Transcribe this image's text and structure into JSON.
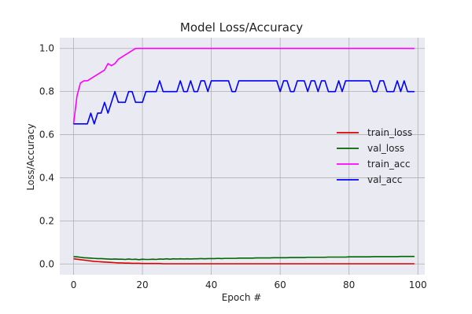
{
  "chart_data": {
    "type": "line",
    "title": "Model Loss/Accuracy",
    "xlabel": "Epoch #",
    "ylabel": "Loss/Accuracy",
    "xlim": [
      -4,
      102
    ],
    "ylim": [
      -0.05,
      1.05
    ],
    "xticks": [
      0,
      20,
      40,
      60,
      80,
      100
    ],
    "yticks": [
      0.0,
      0.2,
      0.4,
      0.6,
      0.8,
      1.0
    ],
    "xtick_labels": [
      "0",
      "20",
      "40",
      "60",
      "80",
      "100"
    ],
    "ytick_labels": [
      "0.0",
      "0.2",
      "0.4",
      "0.6",
      "0.8",
      "1.0"
    ],
    "grid": true,
    "legend_position": "center-right",
    "background": "#eaeaf2",
    "series": [
      {
        "name": "train_loss",
        "color": "#dd0000",
        "values": [
          0.024,
          0.022,
          0.02,
          0.018,
          0.016,
          0.014,
          0.012,
          0.011,
          0.01,
          0.009,
          0.008,
          0.007,
          0.006,
          0.005,
          0.005,
          0.004,
          0.004,
          0.003,
          0.003,
          0.003,
          0.002,
          0.002,
          0.002,
          0.002,
          0.002,
          0.002,
          0.001,
          0.001,
          0.001,
          0.001,
          0.001,
          0.001,
          0.001,
          0.001,
          0.001,
          0.001,
          0.001,
          0.001,
          0.001,
          0.001,
          0.001,
          0.001,
          0.001,
          0.001,
          0.001,
          0.001,
          0.001,
          0.001,
          0.001,
          0.001,
          0.001,
          0.001,
          0.001,
          0.001,
          0.001,
          0.001,
          0.001,
          0.001,
          0.001,
          0.001,
          0.001,
          0.001,
          0.001,
          0.001,
          0.001,
          0.001,
          0.001,
          0.001,
          0.001,
          0.001,
          0.001,
          0.001,
          0.001,
          0.001,
          0.001,
          0.001,
          0.001,
          0.001,
          0.001,
          0.001,
          0.001,
          0.001,
          0.001,
          0.001,
          0.001,
          0.001,
          0.001,
          0.001,
          0.001,
          0.001,
          0.001,
          0.001,
          0.001,
          0.001,
          0.001,
          0.001,
          0.001,
          0.001,
          0.001,
          0.001
        ]
      },
      {
        "name": "val_loss",
        "color": "#006400",
        "values": [
          0.034,
          0.033,
          0.031,
          0.029,
          0.028,
          0.027,
          0.026,
          0.025,
          0.025,
          0.024,
          0.023,
          0.022,
          0.023,
          0.022,
          0.022,
          0.021,
          0.023,
          0.021,
          0.022,
          0.02,
          0.022,
          0.021,
          0.021,
          0.022,
          0.021,
          0.023,
          0.022,
          0.024,
          0.022,
          0.024,
          0.023,
          0.024,
          0.023,
          0.024,
          0.023,
          0.024,
          0.024,
          0.025,
          0.024,
          0.025,
          0.025,
          0.025,
          0.026,
          0.025,
          0.026,
          0.026,
          0.026,
          0.026,
          0.027,
          0.027,
          0.027,
          0.027,
          0.027,
          0.028,
          0.028,
          0.028,
          0.028,
          0.028,
          0.029,
          0.029,
          0.029,
          0.029,
          0.029,
          0.03,
          0.03,
          0.03,
          0.03,
          0.03,
          0.031,
          0.031,
          0.031,
          0.031,
          0.031,
          0.031,
          0.032,
          0.032,
          0.032,
          0.032,
          0.032,
          0.032,
          0.033,
          0.033,
          0.033,
          0.033,
          0.033,
          0.033,
          0.033,
          0.034,
          0.034,
          0.034,
          0.034,
          0.034,
          0.034,
          0.034,
          0.034,
          0.035,
          0.035,
          0.035,
          0.035,
          0.035
        ]
      },
      {
        "name": "train_acc",
        "color": "#ff00ff",
        "values": [
          0.65,
          0.78,
          0.84,
          0.85,
          0.85,
          0.86,
          0.87,
          0.88,
          0.89,
          0.9,
          0.93,
          0.92,
          0.93,
          0.95,
          0.96,
          0.97,
          0.98,
          0.99,
          1.0,
          1.0,
          1.0,
          1.0,
          1.0,
          1.0,
          1.0,
          1.0,
          1.0,
          1.0,
          1.0,
          1.0,
          1.0,
          1.0,
          1.0,
          1.0,
          1.0,
          1.0,
          1.0,
          1.0,
          1.0,
          1.0,
          1.0,
          1.0,
          1.0,
          1.0,
          1.0,
          1.0,
          1.0,
          1.0,
          1.0,
          1.0,
          1.0,
          1.0,
          1.0,
          1.0,
          1.0,
          1.0,
          1.0,
          1.0,
          1.0,
          1.0,
          1.0,
          1.0,
          1.0,
          1.0,
          1.0,
          1.0,
          1.0,
          1.0,
          1.0,
          1.0,
          1.0,
          1.0,
          1.0,
          1.0,
          1.0,
          1.0,
          1.0,
          1.0,
          1.0,
          1.0,
          1.0,
          1.0,
          1.0,
          1.0,
          1.0,
          1.0,
          1.0,
          1.0,
          1.0,
          1.0,
          1.0,
          1.0,
          1.0,
          1.0,
          1.0,
          1.0,
          1.0,
          1.0,
          1.0,
          1.0
        ]
      },
      {
        "name": "val_acc",
        "color": "#0000ff",
        "values": [
          0.65,
          0.65,
          0.65,
          0.65,
          0.65,
          0.7,
          0.65,
          0.7,
          0.7,
          0.75,
          0.7,
          0.75,
          0.8,
          0.75,
          0.75,
          0.75,
          0.8,
          0.8,
          0.75,
          0.75,
          0.75,
          0.8,
          0.8,
          0.8,
          0.8,
          0.85,
          0.8,
          0.8,
          0.8,
          0.8,
          0.8,
          0.85,
          0.8,
          0.8,
          0.85,
          0.8,
          0.8,
          0.85,
          0.85,
          0.8,
          0.85,
          0.85,
          0.85,
          0.85,
          0.85,
          0.85,
          0.8,
          0.8,
          0.85,
          0.85,
          0.85,
          0.85,
          0.85,
          0.85,
          0.85,
          0.85,
          0.85,
          0.85,
          0.85,
          0.85,
          0.8,
          0.85,
          0.85,
          0.8,
          0.8,
          0.85,
          0.85,
          0.85,
          0.8,
          0.85,
          0.85,
          0.8,
          0.85,
          0.85,
          0.8,
          0.8,
          0.8,
          0.85,
          0.8,
          0.85,
          0.85,
          0.85,
          0.85,
          0.85,
          0.85,
          0.85,
          0.85,
          0.8,
          0.8,
          0.85,
          0.85,
          0.8,
          0.8,
          0.8,
          0.85,
          0.8,
          0.85,
          0.8,
          0.8,
          0.8
        ]
      }
    ]
  }
}
